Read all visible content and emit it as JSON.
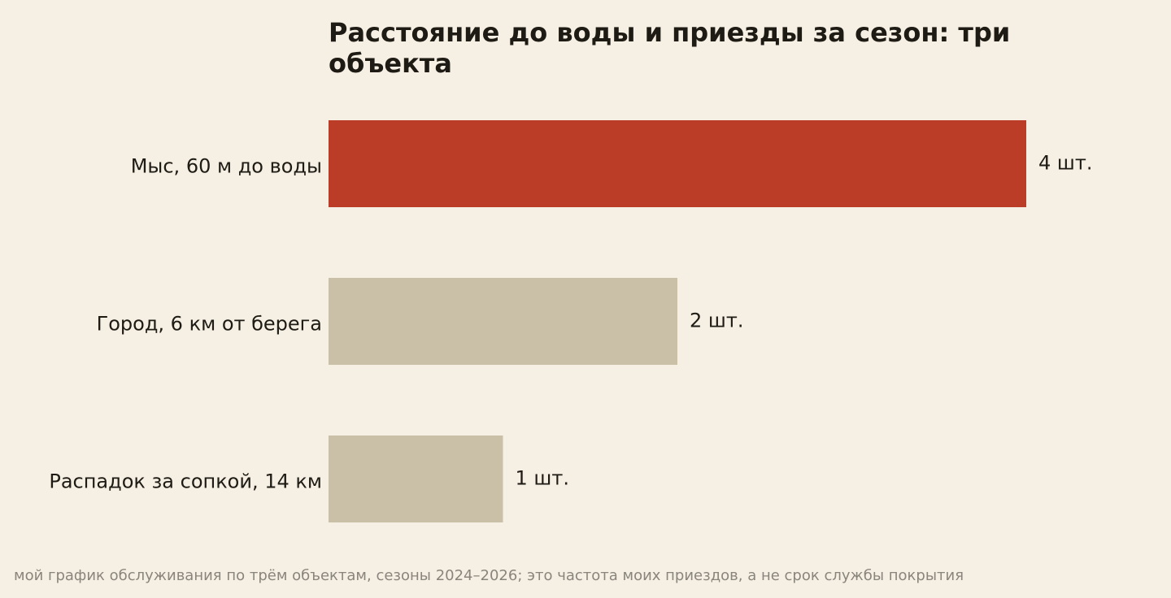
{
  "chart_data": {
    "type": "bar",
    "orientation": "horizontal",
    "title_lines": [
      "Расстояние до воды и приезды за сезон: три",
      "объекта"
    ],
    "categories": [
      "Мыс, 60 м до воды",
      "Город, 6 км от берега",
      "Распадок за сопкой, 14 км"
    ],
    "values": [
      4,
      2,
      1
    ],
    "value_labels": [
      "4 шт.",
      "2 шт.",
      "1 шт."
    ],
    "xlim": [
      0,
      4
    ],
    "xlabel": "",
    "ylabel": "",
    "grid": false,
    "highlight_index": 0,
    "colors": {
      "highlight": "#bb3c27",
      "default": "#c9c0a7",
      "background": "#f6f0e4",
      "text": "#1e1a14",
      "note": "#8a857c"
    },
    "footnote": "мой график обслуживания по трём объектам, сезоны 2024–2026; это частота моих приездов, а не срок службы покрытия"
  }
}
